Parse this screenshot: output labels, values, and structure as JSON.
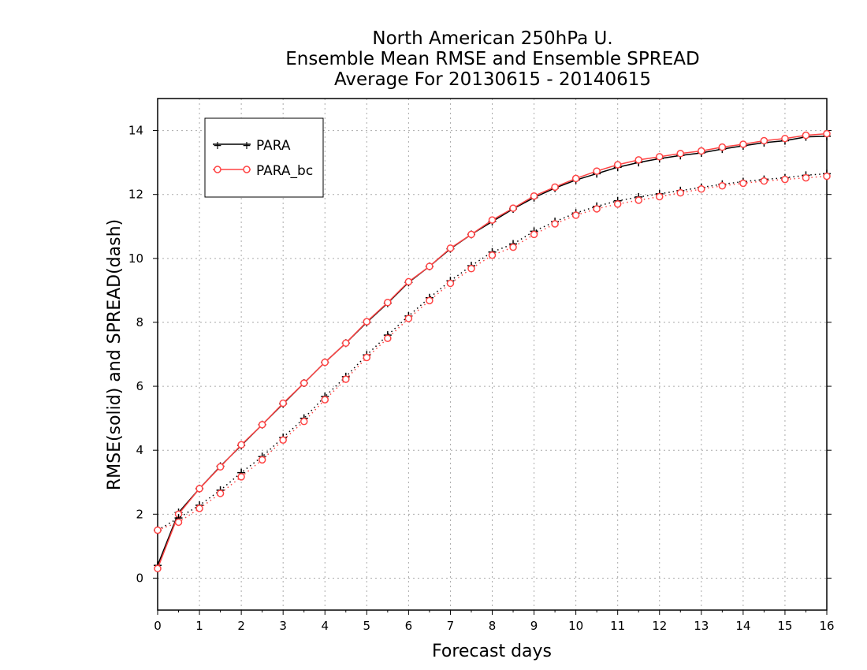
{
  "chart_data": {
    "type": "line",
    "title": [
      "North American 250hPa U.",
      "Ensemble Mean RMSE and Ensemble SPREAD",
      "Average For 20130615 - 20140615"
    ],
    "xlabel": "Forecast days",
    "ylabel": "RMSE(solid) and SPREAD(dash)",
    "xlim": [
      0,
      16
    ],
    "ylim": [
      -1,
      15
    ],
    "xticks": [
      0,
      1,
      2,
      3,
      4,
      5,
      6,
      7,
      8,
      9,
      10,
      11,
      12,
      13,
      14,
      15,
      16
    ],
    "yticks": [
      0,
      2,
      4,
      6,
      8,
      10,
      12,
      14
    ],
    "grid": true,
    "legend_position": "top-left",
    "x": [
      0,
      0.5,
      1,
      1.5,
      2,
      2.5,
      3,
      3.5,
      4,
      4.5,
      5,
      5.5,
      6,
      6.5,
      7,
      7.5,
      8,
      8.5,
      9,
      9.5,
      10,
      10.5,
      11,
      11.5,
      12,
      12.5,
      13,
      13.5,
      14,
      14.5,
      15,
      15.5,
      16
    ],
    "series": [
      {
        "name": "PARA",
        "metric": "RMSE",
        "style": "solid",
        "marker": "plus",
        "color": "#000000",
        "values": [
          0.4,
          2.05,
          2.8,
          3.5,
          4.15,
          4.8,
          5.45,
          6.1,
          6.75,
          7.35,
          8.0,
          8.6,
          9.25,
          9.75,
          10.3,
          10.75,
          11.15,
          11.55,
          11.9,
          12.2,
          12.45,
          12.65,
          12.85,
          13.0,
          13.12,
          13.22,
          13.3,
          13.42,
          13.52,
          13.62,
          13.68,
          13.8,
          13.82
        ]
      },
      {
        "name": "PARA_bc",
        "metric": "RMSE",
        "style": "solid",
        "marker": "circle",
        "color": "#ff4444",
        "values": [
          0.3,
          2.0,
          2.8,
          3.48,
          4.17,
          4.8,
          5.47,
          6.1,
          6.75,
          7.35,
          8.02,
          8.62,
          9.27,
          9.75,
          10.32,
          10.75,
          11.2,
          11.57,
          11.95,
          12.23,
          12.5,
          12.73,
          12.93,
          13.08,
          13.18,
          13.28,
          13.36,
          13.48,
          13.57,
          13.68,
          13.75,
          13.85,
          13.9
        ]
      },
      {
        "name": "PARA",
        "metric": "SPREAD",
        "style": "dotted",
        "marker": "plus",
        "color": "#000000",
        "values": [
          1.5,
          1.88,
          2.28,
          2.75,
          3.3,
          3.8,
          4.4,
          5.0,
          5.68,
          6.3,
          6.98,
          7.6,
          8.2,
          8.77,
          9.3,
          9.77,
          10.2,
          10.45,
          10.85,
          11.15,
          11.42,
          11.63,
          11.8,
          11.92,
          12.02,
          12.12,
          12.22,
          12.32,
          12.4,
          12.47,
          12.52,
          12.6,
          12.65
        ]
      },
      {
        "name": "PARA_bc",
        "metric": "SPREAD",
        "style": "dotted",
        "marker": "circle",
        "color": "#ff4444",
        "values": [
          1.5,
          1.75,
          2.18,
          2.65,
          3.17,
          3.7,
          4.32,
          4.9,
          5.58,
          6.22,
          6.9,
          7.5,
          8.12,
          8.68,
          9.22,
          9.68,
          10.1,
          10.35,
          10.75,
          11.08,
          11.35,
          11.55,
          11.7,
          11.82,
          11.93,
          12.05,
          12.17,
          12.27,
          12.35,
          12.42,
          12.47,
          12.52,
          12.57
        ]
      }
    ]
  }
}
